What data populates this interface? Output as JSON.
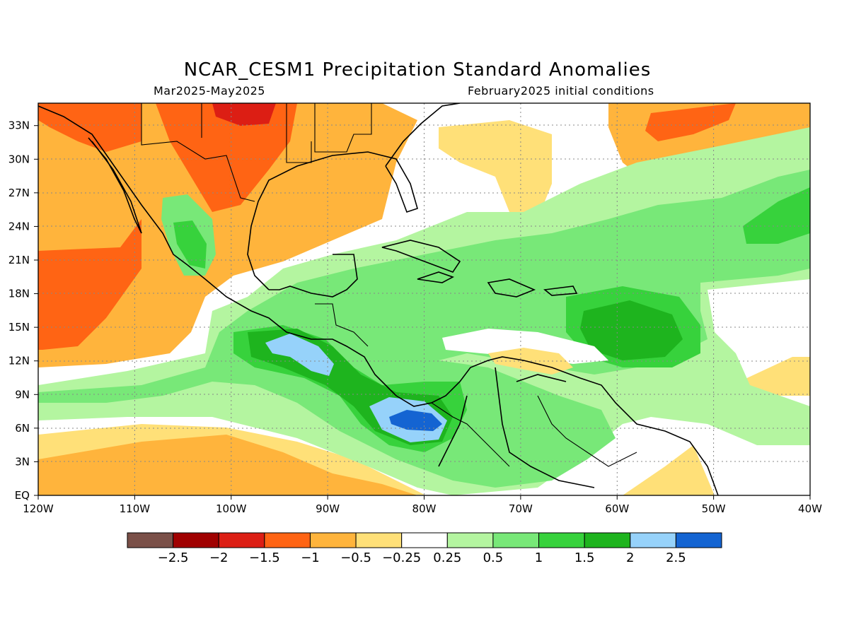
{
  "title": "NCAR_CESM1 Precipitation Standard Anomalies",
  "period": "Mar2025-May2025",
  "initial_conditions": "February2025 initial conditions",
  "latitude_labels": [
    "33N",
    "30N",
    "27N",
    "24N",
    "21N",
    "18N",
    "15N",
    "12N",
    "9N",
    "6N",
    "3N",
    "EQ"
  ],
  "longitude_labels": [
    "120W",
    "110W",
    "100W",
    "90W",
    "80W",
    "70W",
    "60W",
    "50W",
    "40W"
  ],
  "colorbar": {
    "colors": [
      "#7a5048",
      "#a00000",
      "#dc1e14",
      "#ff6414",
      "#ffb43c",
      "#ffe078",
      "#ffffff",
      "#b4f5a0",
      "#78e878",
      "#37d23c",
      "#1eb41e",
      "#96d2fa",
      "#1464d2"
    ],
    "labels": [
      "-2.5",
      "-2",
      "-1.5",
      "-1",
      "-0.5",
      "-0.25",
      "0.25",
      "0.5",
      "1",
      "1.5",
      "2",
      "2.5"
    ]
  },
  "map": {
    "lon_range": [
      -120,
      -40
    ],
    "lat_range": [
      0,
      35
    ],
    "grid": true,
    "land_color": "#ffffff",
    "anomaly_regions": [
      {
        "level": "-1.5",
        "color": "#dc1e14",
        "area": "northern Mexico / Texas border"
      },
      {
        "level": "-1",
        "color": "#ff6414",
        "area": "Mexican Pacific coast, south Texas, northwest Atlantic"
      },
      {
        "level": "-0.5",
        "color": "#ffb43c",
        "area": "eastern Pacific, Gulf of Mexico, western Atlantic"
      },
      {
        "level": "1.5",
        "color": "#1eb41e",
        "area": "central tropical Atlantic"
      },
      {
        "level": "2",
        "color": "#96d2fa",
        "area": "off Guatemala and off Panama"
      },
      {
        "level": "2.5",
        "color": "#1464d2",
        "area": "off Panama"
      }
    ]
  }
}
